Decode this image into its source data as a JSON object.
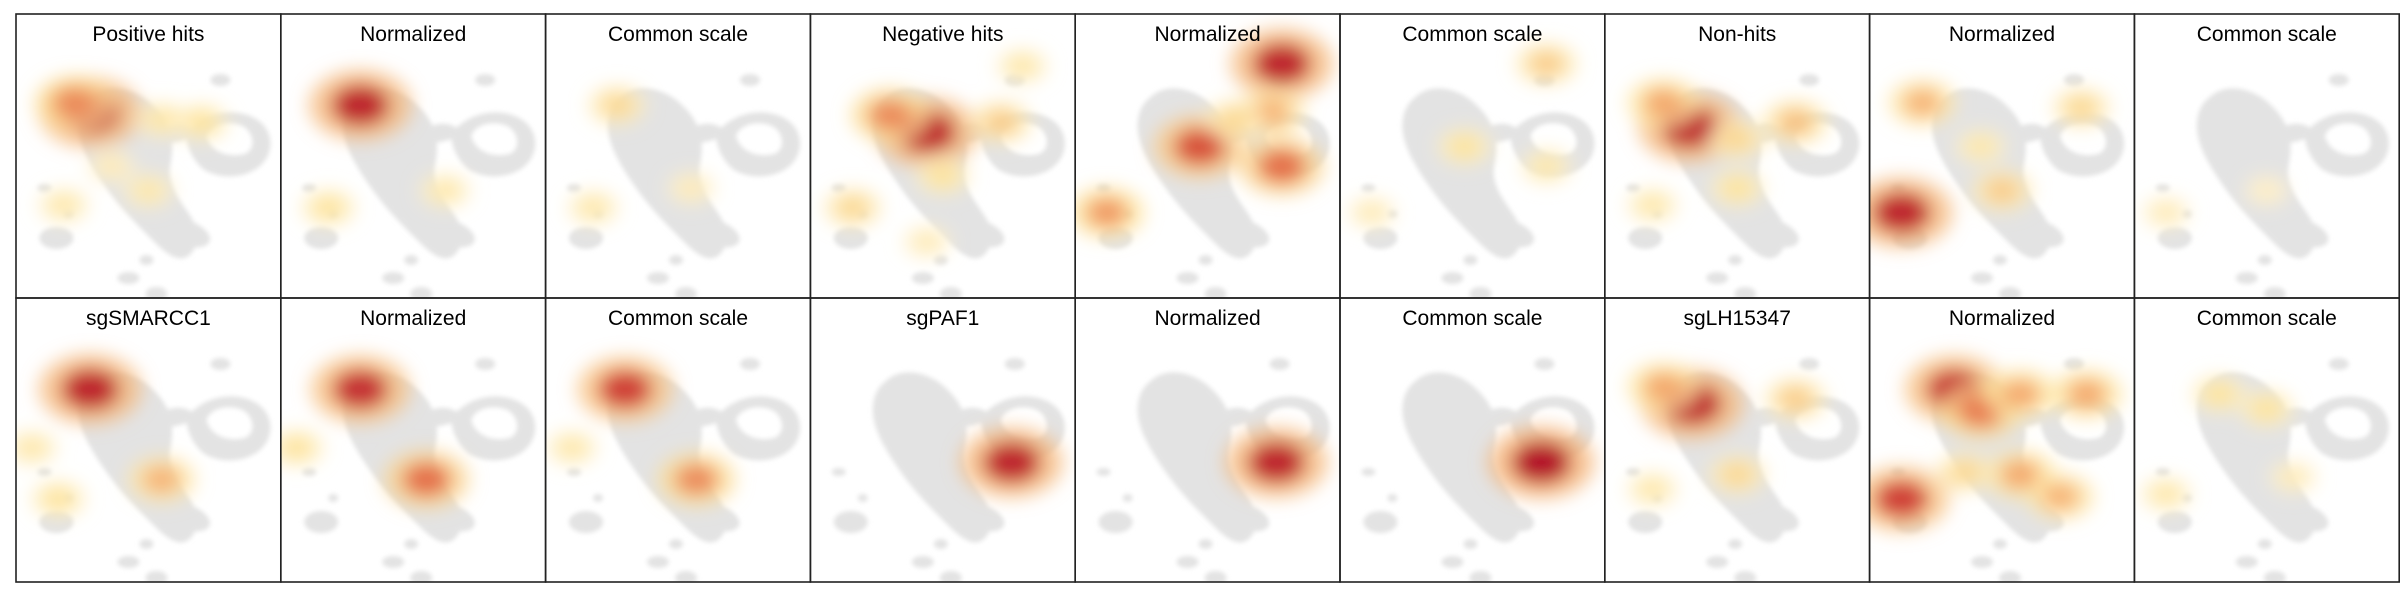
{
  "chart_data": {
    "type": "heatmap",
    "layout": {
      "rows": 2,
      "columns": 9
    },
    "background_embedding_color": "#e3e3e3",
    "colormap": [
      "#fff5dd",
      "#fde39a",
      "#f3a56a",
      "#e05a3a",
      "#b00a26"
    ],
    "panels": [
      {
        "title": "Positive hits",
        "scale": "own",
        "blobs": [
          {
            "x": 0.28,
            "y": 0.24,
            "level": 0.95
          },
          {
            "x": 0.22,
            "y": 0.2,
            "level": 0.6
          },
          {
            "x": 0.7,
            "y": 0.28,
            "level": 0.25
          },
          {
            "x": 0.55,
            "y": 0.27,
            "level": 0.22
          },
          {
            "x": 0.18,
            "y": 0.62,
            "level": 0.2
          },
          {
            "x": 0.5,
            "y": 0.56,
            "level": 0.2
          },
          {
            "x": 0.36,
            "y": 0.46,
            "level": 0.15
          }
        ]
      },
      {
        "title": "Normalized",
        "scale": "normalized",
        "blobs": [
          {
            "x": 0.3,
            "y": 0.21,
            "level": 0.95
          },
          {
            "x": 0.18,
            "y": 0.63,
            "level": 0.25
          },
          {
            "x": 0.62,
            "y": 0.56,
            "level": 0.2
          }
        ]
      },
      {
        "title": "Common scale",
        "scale": "common",
        "blobs": [
          {
            "x": 0.27,
            "y": 0.21,
            "level": 0.3
          },
          {
            "x": 0.18,
            "y": 0.63,
            "level": 0.2
          },
          {
            "x": 0.55,
            "y": 0.55,
            "level": 0.15
          }
        ]
      },
      {
        "title": "Negative hits",
        "scale": "own",
        "blobs": [
          {
            "x": 0.44,
            "y": 0.32,
            "level": 0.95
          },
          {
            "x": 0.3,
            "y": 0.25,
            "level": 0.6
          },
          {
            "x": 0.72,
            "y": 0.28,
            "level": 0.35
          },
          {
            "x": 0.8,
            "y": 0.05,
            "level": 0.2
          },
          {
            "x": 0.16,
            "y": 0.63,
            "level": 0.3
          },
          {
            "x": 0.5,
            "y": 0.5,
            "level": 0.25
          },
          {
            "x": 0.44,
            "y": 0.77,
            "level": 0.15
          }
        ]
      },
      {
        "title": "Normalized",
        "scale": "normalized",
        "blobs": [
          {
            "x": 0.78,
            "y": 0.04,
            "level": 0.95
          },
          {
            "x": 0.47,
            "y": 0.38,
            "level": 0.8
          },
          {
            "x": 0.78,
            "y": 0.46,
            "level": 0.7
          },
          {
            "x": 0.74,
            "y": 0.24,
            "level": 0.45
          },
          {
            "x": 0.12,
            "y": 0.65,
            "level": 0.55
          },
          {
            "x": 0.6,
            "y": 0.27,
            "level": 0.3
          }
        ]
      },
      {
        "title": "Common scale",
        "scale": "common",
        "blobs": [
          {
            "x": 0.78,
            "y": 0.04,
            "level": 0.35
          },
          {
            "x": 0.47,
            "y": 0.38,
            "level": 0.25
          },
          {
            "x": 0.78,
            "y": 0.46,
            "level": 0.2
          },
          {
            "x": 0.12,
            "y": 0.65,
            "level": 0.15
          }
        ]
      },
      {
        "title": "Non-hits",
        "scale": "own",
        "blobs": [
          {
            "x": 0.32,
            "y": 0.3,
            "level": 0.95
          },
          {
            "x": 0.22,
            "y": 0.2,
            "level": 0.5
          },
          {
            "x": 0.72,
            "y": 0.28,
            "level": 0.4
          },
          {
            "x": 0.5,
            "y": 0.35,
            "level": 0.3
          },
          {
            "x": 0.18,
            "y": 0.62,
            "level": 0.2
          },
          {
            "x": 0.5,
            "y": 0.55,
            "level": 0.25
          }
        ]
      },
      {
        "title": "Normalized",
        "scale": "normalized",
        "blobs": [
          {
            "x": 0.12,
            "y": 0.65,
            "level": 0.95
          },
          {
            "x": 0.2,
            "y": 0.2,
            "level": 0.45
          },
          {
            "x": 0.5,
            "y": 0.56,
            "level": 0.35
          },
          {
            "x": 0.8,
            "y": 0.22,
            "level": 0.3
          },
          {
            "x": 0.42,
            "y": 0.38,
            "level": 0.2
          }
        ]
      },
      {
        "title": "Common scale",
        "scale": "common",
        "blobs": [
          {
            "x": 0.12,
            "y": 0.65,
            "level": 0.15
          },
          {
            "x": 0.5,
            "y": 0.56,
            "level": 0.1
          }
        ]
      },
      {
        "title": "sgSMARCC1",
        "scale": "own",
        "blobs": [
          {
            "x": 0.28,
            "y": 0.21,
            "level": 0.95
          },
          {
            "x": 0.55,
            "y": 0.58,
            "level": 0.45
          },
          {
            "x": 0.16,
            "y": 0.66,
            "level": 0.25
          },
          {
            "x": 0.06,
            "y": 0.45,
            "level": 0.2
          }
        ]
      },
      {
        "title": "Normalized",
        "scale": "normalized",
        "blobs": [
          {
            "x": 0.3,
            "y": 0.21,
            "level": 0.9
          },
          {
            "x": 0.55,
            "y": 0.58,
            "level": 0.7
          },
          {
            "x": 0.06,
            "y": 0.45,
            "level": 0.25
          }
        ]
      },
      {
        "title": "Common scale",
        "scale": "common",
        "blobs": [
          {
            "x": 0.3,
            "y": 0.21,
            "level": 0.85
          },
          {
            "x": 0.57,
            "y": 0.58,
            "level": 0.6
          },
          {
            "x": 0.1,
            "y": 0.45,
            "level": 0.2
          }
        ]
      },
      {
        "title": "sgPAF1",
        "scale": "own",
        "blobs": [
          {
            "x": 0.76,
            "y": 0.51,
            "level": 0.95
          }
        ]
      },
      {
        "title": "Normalized",
        "scale": "normalized",
        "blobs": [
          {
            "x": 0.76,
            "y": 0.51,
            "level": 0.95
          }
        ]
      },
      {
        "title": "Common scale",
        "scale": "common",
        "blobs": [
          {
            "x": 0.76,
            "y": 0.51,
            "level": 1.0
          }
        ]
      },
      {
        "title": "sgLH15347",
        "scale": "own",
        "blobs": [
          {
            "x": 0.33,
            "y": 0.27,
            "level": 0.95
          },
          {
            "x": 0.22,
            "y": 0.2,
            "level": 0.5
          },
          {
            "x": 0.72,
            "y": 0.25,
            "level": 0.35
          },
          {
            "x": 0.18,
            "y": 0.62,
            "level": 0.2
          },
          {
            "x": 0.5,
            "y": 0.56,
            "level": 0.3
          }
        ]
      },
      {
        "title": "Normalized",
        "scale": "normalized",
        "blobs": [
          {
            "x": 0.32,
            "y": 0.21,
            "level": 0.9
          },
          {
            "x": 0.42,
            "y": 0.3,
            "level": 0.65
          },
          {
            "x": 0.12,
            "y": 0.66,
            "level": 0.85
          },
          {
            "x": 0.57,
            "y": 0.23,
            "level": 0.5
          },
          {
            "x": 0.82,
            "y": 0.23,
            "level": 0.5
          },
          {
            "x": 0.57,
            "y": 0.56,
            "level": 0.5
          },
          {
            "x": 0.72,
            "y": 0.65,
            "level": 0.45
          },
          {
            "x": 0.36,
            "y": 0.55,
            "level": 0.3
          }
        ]
      },
      {
        "title": "Common scale",
        "scale": "common",
        "blobs": [
          {
            "x": 0.32,
            "y": 0.23,
            "level": 0.25
          },
          {
            "x": 0.5,
            "y": 0.29,
            "level": 0.25
          },
          {
            "x": 0.12,
            "y": 0.64,
            "level": 0.2
          },
          {
            "x": 0.6,
            "y": 0.57,
            "level": 0.15
          }
        ]
      }
    ]
  }
}
